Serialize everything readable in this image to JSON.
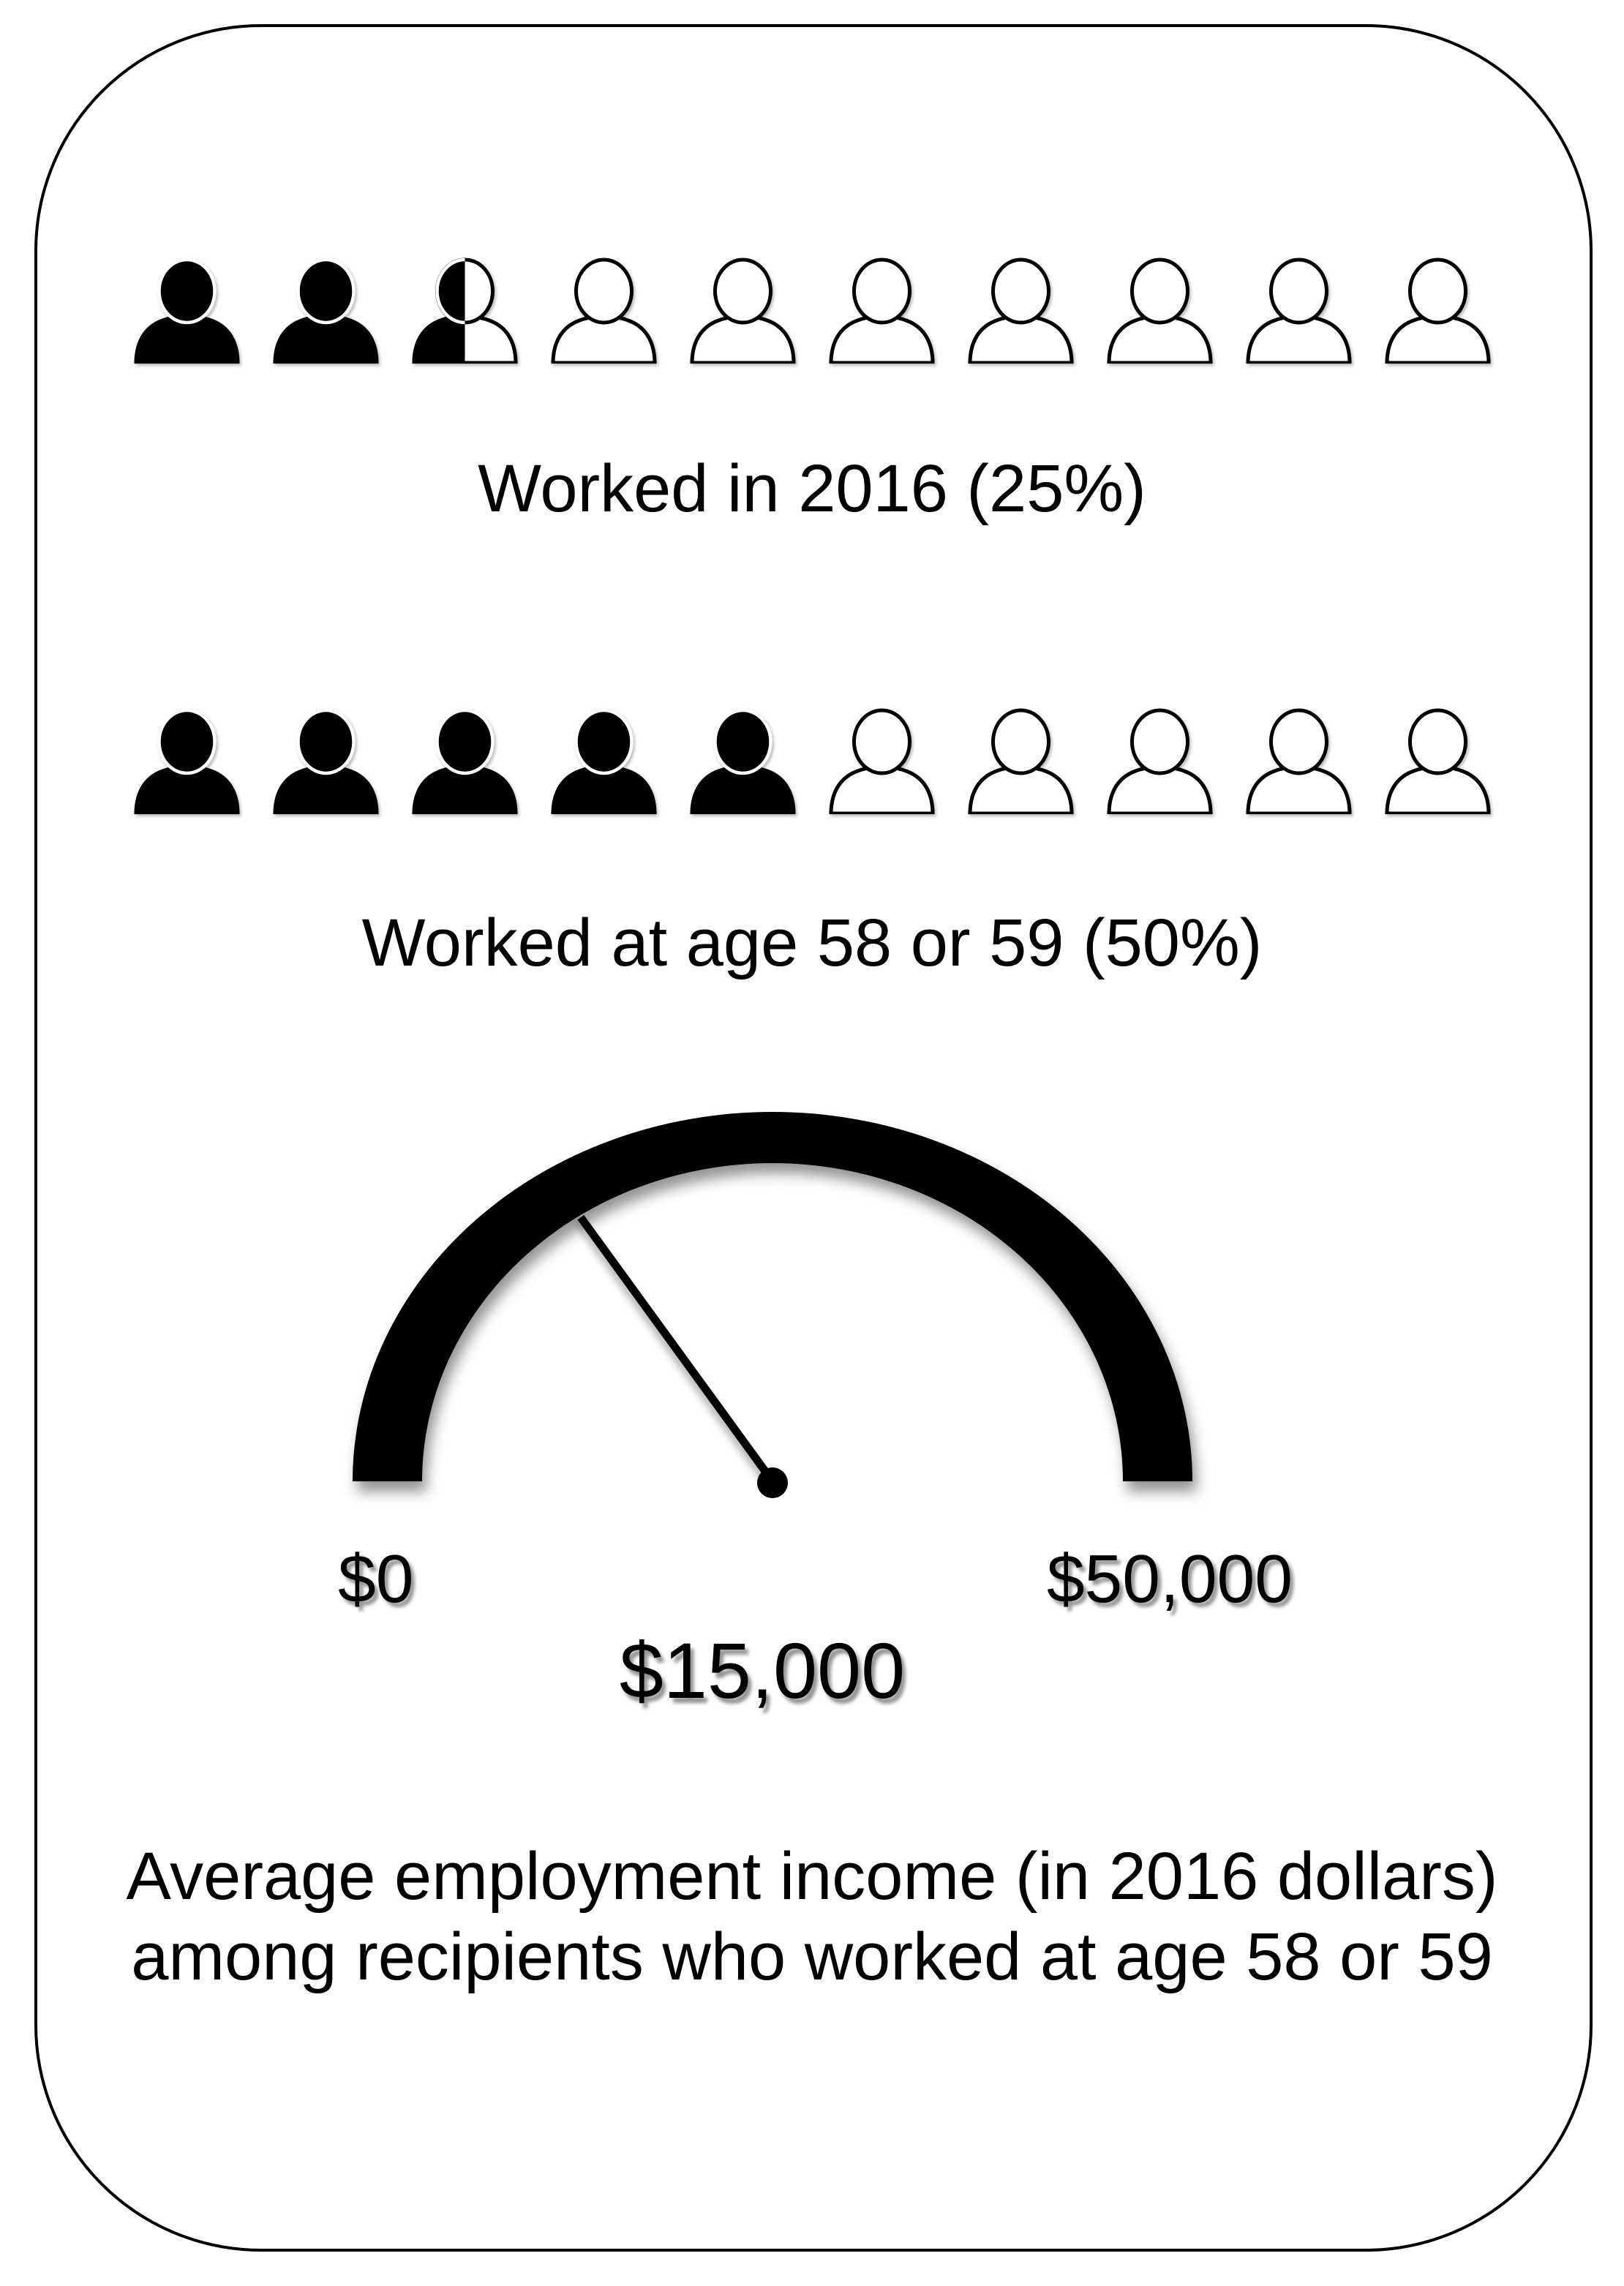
{
  "page": {
    "background": "#ffffff",
    "frame_border_color": "#000000",
    "ink_color": "#000000"
  },
  "chart_data": [
    {
      "type": "pictograph",
      "title": "Worked in 2016 (25%)",
      "value_percent": 25,
      "icons_total": 10,
      "icons_filled": 2.5,
      "icon": "person-icon",
      "fill_color": "#000000",
      "outline_color": "#000000"
    },
    {
      "type": "pictograph",
      "title": "Worked at age 58 or 59 (50%)",
      "value_percent": 50,
      "icons_total": 10,
      "icons_filled": 5,
      "icon": "person-icon",
      "fill_color": "#000000",
      "outline_color": "#000000"
    },
    {
      "type": "gauge",
      "min": 0,
      "max": 50000,
      "value": 15000,
      "min_label": "$0",
      "max_label": "$50,000",
      "value_label": "$15,000",
      "arc_color": "#000000",
      "caption_line1": "Average employment income (in 2016 dollars)",
      "caption_line2": "among recipients who worked at age 58 or 59"
    }
  ]
}
